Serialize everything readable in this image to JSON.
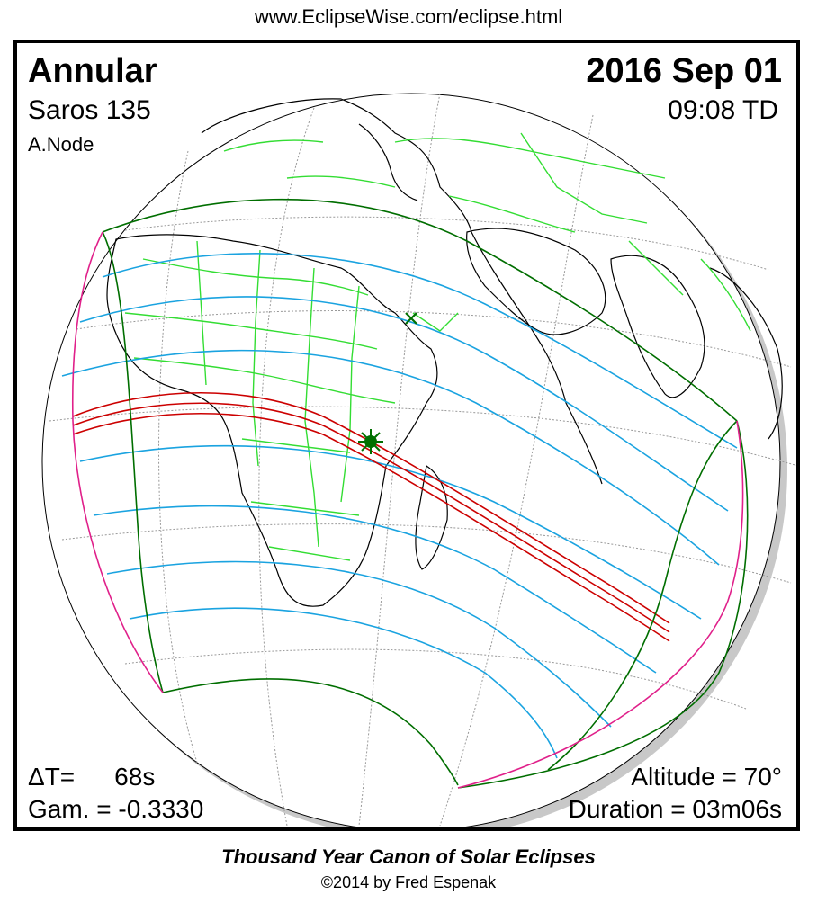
{
  "header": {
    "url": "www.EclipseWise.com/eclipse.html"
  },
  "eclipse": {
    "type": "Annular",
    "saros": "Saros 135",
    "node": "A.Node",
    "date": "2016 Sep 01",
    "time": "09:08 TD",
    "delta_t_label": "ΔT=",
    "delta_t_value": "68s",
    "gamma": "Gam. = -0.3330",
    "altitude": "Altitude = 70°",
    "duration": "Duration = 03m06s"
  },
  "map": {
    "colors": {
      "ocean": "#ffffff",
      "shadow": "#c8c8c8",
      "coastline": "#000000",
      "borders": "#33dd33",
      "graticule": "#888888",
      "penumbra_limits": "#006e00",
      "partial_magnitude_lines": "#1aa3e0",
      "central_path": "#cc0000",
      "sunrise_sunset_curves": "#e0208a",
      "markers": "#007000"
    },
    "markers": [
      {
        "name": "greatest-eclipse",
        "symbol": "star"
      },
      {
        "name": "sub-solar-point",
        "symbol": "x"
      }
    ]
  },
  "footer": {
    "canon_title": "Thousand Year Canon of Solar Eclipses",
    "copyright": "©2014 by Fred Espenak"
  }
}
